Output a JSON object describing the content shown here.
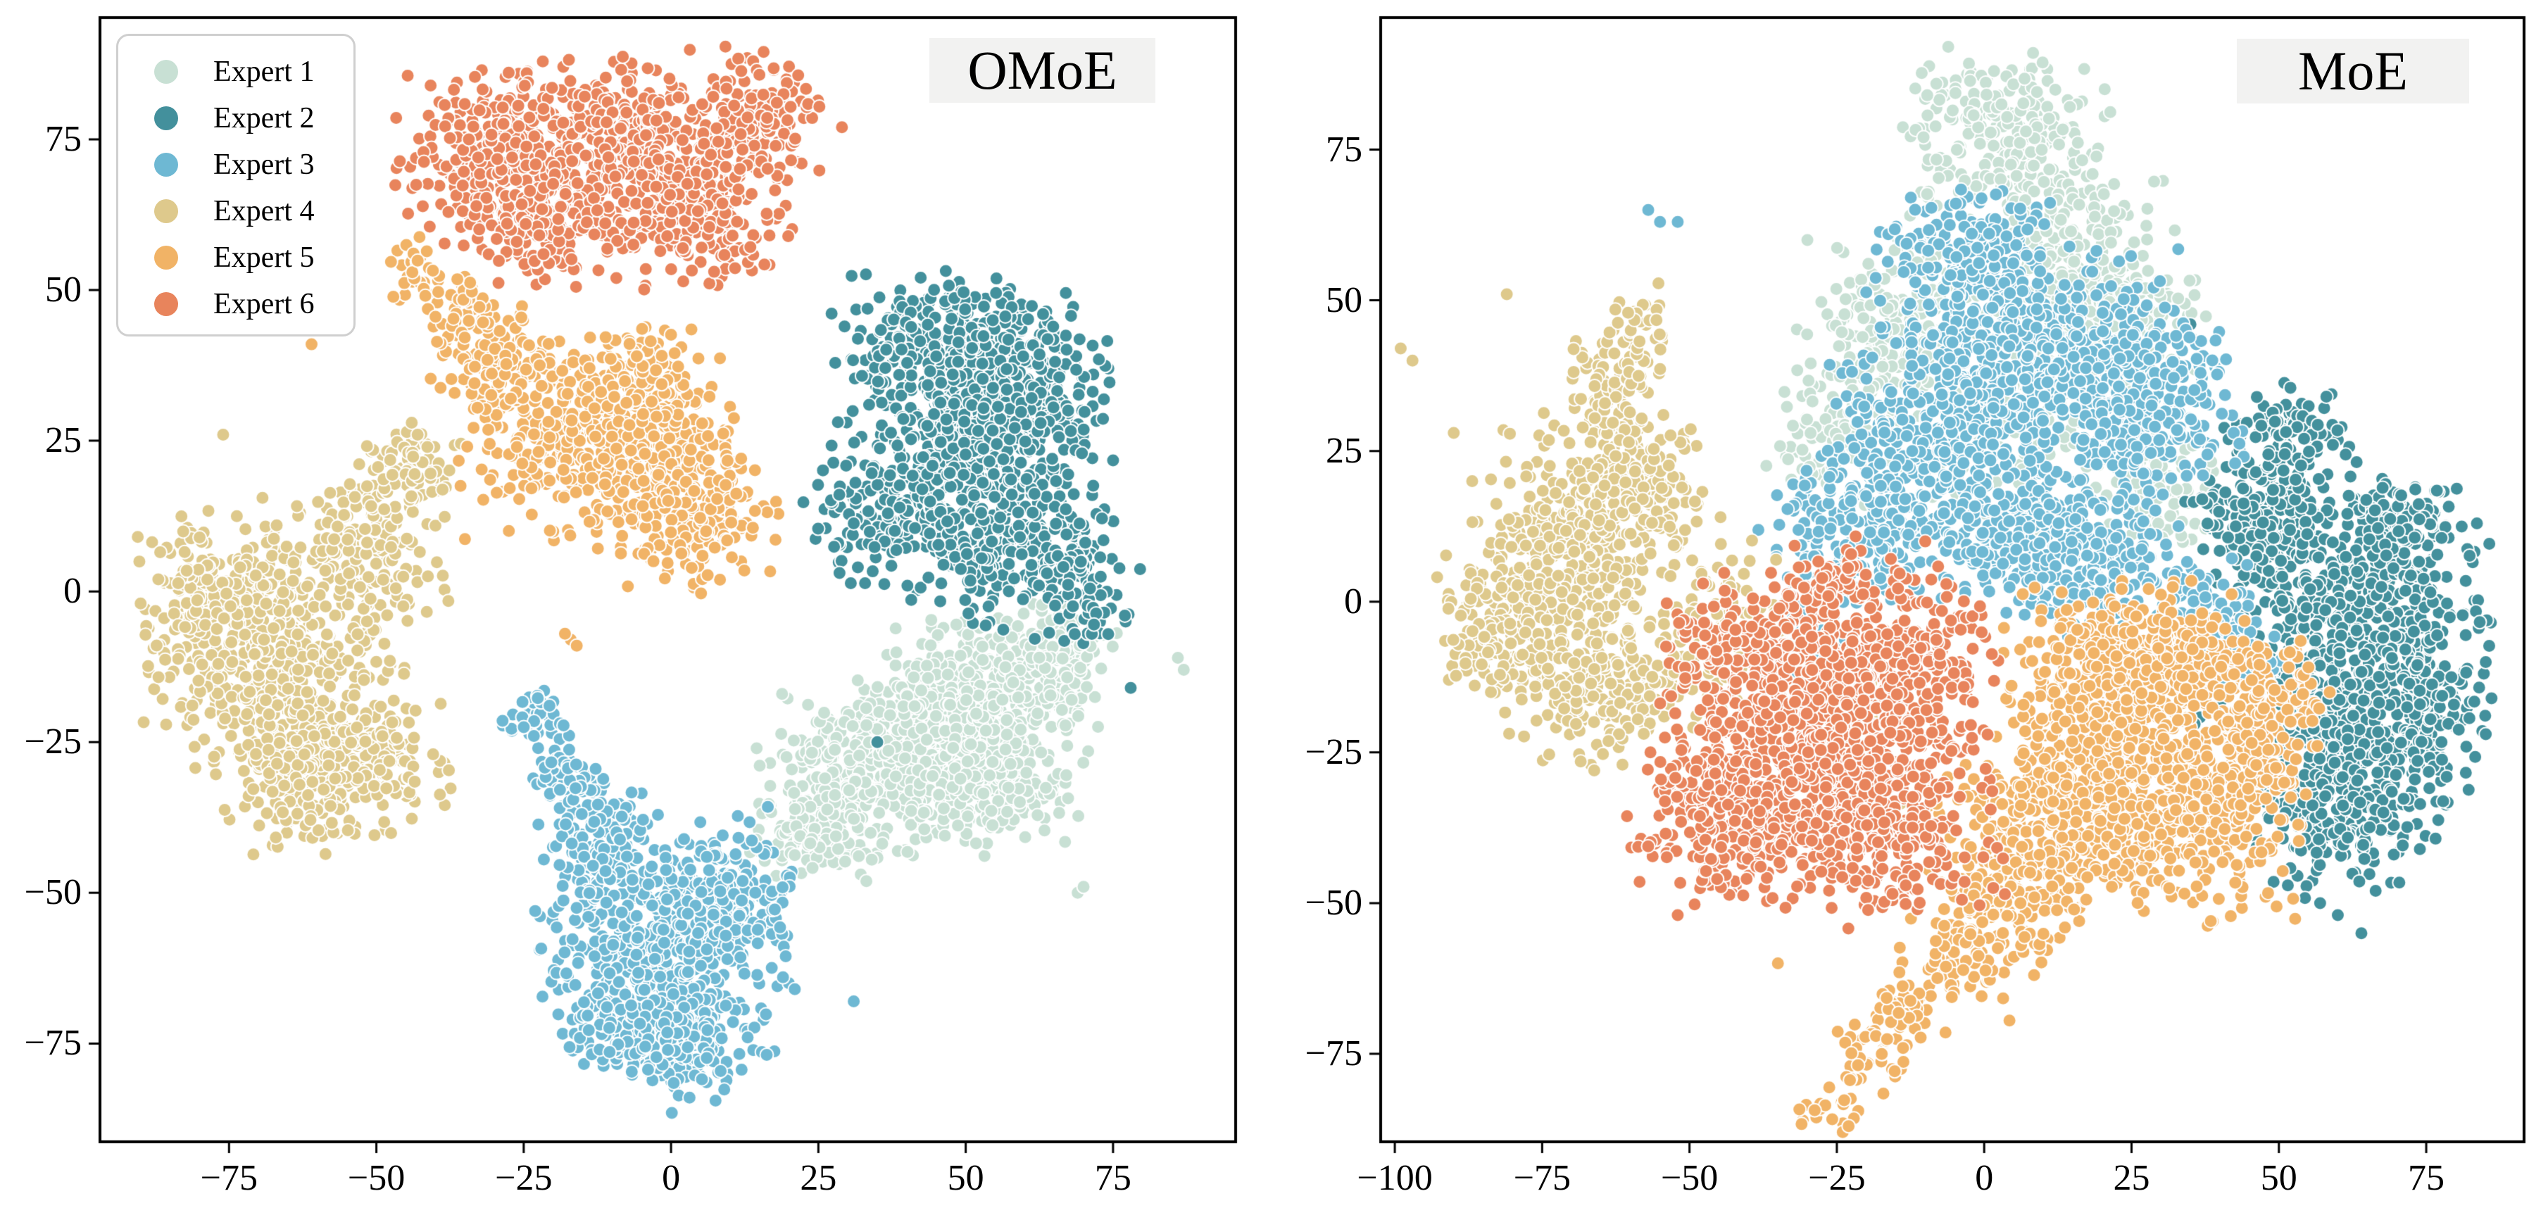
{
  "legend_note": "legend entries derive from chart_data.0.series names and colors",
  "chart_data": [
    {
      "type": "scatter",
      "title": "OMoE",
      "xlabel": "",
      "ylabel": "",
      "grid": false,
      "legend_position": "upper left",
      "x_ticks": [
        -75,
        -50,
        -25,
        0,
        25,
        50,
        75
      ],
      "y_ticks": [
        75,
        50,
        25,
        0,
        -25,
        -50,
        -75
      ],
      "x_range": [
        -96.9,
        95.8
      ],
      "y_range": [
        -91.3,
        95.2
      ],
      "series": [
        {
          "name": "Expert 1",
          "color": "#c8e0d4",
          "blobs": [
            [
              52,
              -18,
              9,
              6,
              380
            ],
            [
              35,
              -30,
              9,
              6,
              330
            ],
            [
              55,
              -32,
              6,
              5,
              200
            ],
            [
              25,
              -40,
              5,
              4,
              140
            ],
            [
              64,
              -11,
              5,
              4,
              150
            ],
            [
              44,
              -22,
              7,
              5,
              200
            ]
          ],
          "strays": [
            [
              86,
              -11
            ],
            [
              87,
              -13
            ],
            [
              69,
              -50
            ],
            [
              70,
              -49
            ]
          ]
        },
        {
          "name": "Expert 2",
          "color": "#43909c",
          "blobs": [
            [
              47,
              40,
              9,
              6,
              380
            ],
            [
              58,
              32,
              8,
              7,
              300
            ],
            [
              42,
              15,
              9,
              7,
              350
            ],
            [
              60,
              8,
              7,
              6,
              220
            ],
            [
              70,
              0,
              4,
              4,
              80
            ],
            [
              52,
              24,
              6,
              5,
              150
            ]
          ],
          "strays": [
            [
              77,
              -4
            ],
            [
              35,
              -25
            ],
            [
              78,
              -16
            ]
          ]
        },
        {
          "name": "Expert 3",
          "color": "#6eb8d3",
          "blobs": [
            [
              -3,
              -60,
              9,
              8,
              420
            ],
            [
              8,
              -50,
              6,
              6,
              220
            ],
            [
              -12,
              -42,
              5,
              5,
              160
            ],
            [
              -18,
              -30,
              3,
              3,
              60
            ],
            [
              -23,
              -21,
              2.5,
              2.5,
              40
            ],
            [
              2,
              -75,
              6,
              5,
              200
            ],
            [
              -8,
              -72,
              5,
              4,
              120
            ]
          ],
          "strays": [
            [
              20,
              -65
            ],
            [
              21,
              -66
            ],
            [
              19,
              -64
            ],
            [
              31,
              -68
            ],
            [
              13,
              -74
            ]
          ]
        },
        {
          "name": "Expert 4",
          "color": "#dec98c",
          "blobs": [
            [
              -67,
              -12,
              10,
              9,
              420
            ],
            [
              -55,
              -28,
              8,
              7,
              260
            ],
            [
              -75,
              0,
              7,
              7,
              220
            ],
            [
              -52,
              6,
              6,
              6,
              180
            ],
            [
              -45,
              19,
              4,
              4,
              90
            ],
            [
              -62,
              -32,
              6,
              5,
              140
            ]
          ],
          "strays": [
            [
              -76,
              26
            ],
            [
              -44,
              28
            ],
            [
              -43,
              26
            ],
            [
              -87,
              2
            ],
            [
              -90,
              -2
            ]
          ]
        },
        {
          "name": "Expert 5",
          "color": "#f1b366",
          "blobs": [
            [
              -13,
              25,
              10,
              7,
              450
            ],
            [
              2,
              14,
              7,
              6,
              250
            ],
            [
              -30,
              38,
              5,
              4,
              120
            ],
            [
              -36,
              47,
              3,
              3,
              50
            ],
            [
              -43,
              53,
              2.5,
              2.5,
              30
            ],
            [
              -5,
              33,
              6,
              5,
              160
            ]
          ],
          "strays": [
            [
              -61,
              41
            ],
            [
              -17,
              -8
            ],
            [
              -16,
              -9
            ],
            [
              -18,
              -7
            ]
          ]
        },
        {
          "name": "Expert 6",
          "color": "#e8845c",
          "blobs": [
            [
              -28,
              72,
              8,
              7,
              350
            ],
            [
              -8,
              75,
              8,
              7,
              350
            ],
            [
              5,
              62,
              7,
              5,
              200
            ],
            [
              14,
              77,
              5,
              6,
              180
            ],
            [
              -20,
              60,
              6,
              4,
              150
            ]
          ],
          "strays": [
            [
              29,
              77
            ]
          ]
        }
      ]
    },
    {
      "type": "scatter",
      "title": "MoE",
      "xlabel": "",
      "ylabel": "",
      "grid": false,
      "legend_position": "none",
      "x_ticks": [
        -100,
        -75,
        -50,
        -25,
        0,
        25,
        50,
        75
      ],
      "y_ticks": [
        75,
        50,
        25,
        0,
        -25,
        -50,
        -75
      ],
      "x_range": [
        -102.4,
        91.6
      ],
      "y_range": [
        -89.6,
        96.9
      ],
      "series": [
        {
          "name": "Expert 1",
          "color": "#c8e0d4",
          "blobs": [
            [
              3,
              76,
              8,
              7,
              280
            ],
            [
              16,
              55,
              7,
              7,
              250
            ],
            [
              24,
              44,
              6,
              6,
              180
            ],
            [
              -14,
              45,
              8,
              7,
              220
            ],
            [
              -25,
              28,
              5,
              5,
              100
            ],
            [
              5,
              30,
              12,
              8,
              150
            ],
            [
              30,
              20,
              6,
              5,
              90
            ]
          ],
          "strays": [
            [
              -30,
              60
            ],
            [
              9,
              12
            ]
          ]
        },
        {
          "name": "Expert 2",
          "color": "#43909c",
          "blobs": [
            [
              62,
              0,
              10,
              9,
              420
            ],
            [
              55,
              -20,
              9,
              8,
              320
            ],
            [
              72,
              -18,
              7,
              7,
              240
            ],
            [
              62,
              -35,
              7,
              6,
              200
            ],
            [
              48,
              14,
              6,
              5,
              160
            ],
            [
              70,
              13,
              5,
              4,
              120
            ],
            [
              52,
              28,
              5,
              4,
              100
            ]
          ],
          "strays": [
            [
              35,
              46
            ],
            [
              37,
              17
            ],
            [
              60,
              -52
            ],
            [
              64,
              -55
            ],
            [
              57,
              -50
            ]
          ]
        },
        {
          "name": "Expert 3",
          "color": "#6eb8d3",
          "blobs": [
            [
              8,
              42,
              12,
              8,
              500
            ],
            [
              25,
              32,
              8,
              7,
              300
            ],
            [
              -8,
              28,
              9,
              7,
              300
            ],
            [
              -22,
              12,
              7,
              6,
              200
            ],
            [
              2,
              12,
              9,
              7,
              280
            ],
            [
              20,
              8,
              7,
              6,
              200
            ],
            [
              38,
              -2,
              4,
              4,
              80
            ],
            [
              44,
              -8,
              3,
              3,
              40
            ],
            [
              -30,
              -5,
              4,
              4,
              70
            ],
            [
              -2,
              58,
              7,
              5,
              180
            ]
          ],
          "strays": [
            [
              -57,
              65
            ],
            [
              -55,
              63
            ],
            [
              -52,
              63
            ]
          ]
        },
        {
          "name": "Expert 4",
          "color": "#dec98c",
          "blobs": [
            [
              -70,
              8,
              8,
              10,
              350
            ],
            [
              -80,
              -5,
              6,
              7,
              200
            ],
            [
              -60,
              20,
              6,
              6,
              180
            ],
            [
              -65,
              -15,
              7,
              6,
              200
            ],
            [
              -63,
              35,
              4,
              5,
              80
            ],
            [
              -58,
              45,
              3,
              4,
              40
            ],
            [
              -45,
              -5,
              5,
              8,
              120
            ],
            [
              -25,
              -20,
              8,
              8,
              60
            ]
          ],
          "strays": [
            [
              -81,
              51
            ],
            [
              -99,
              42
            ],
            [
              -97,
              40
            ],
            [
              -90,
              28
            ]
          ]
        },
        {
          "name": "Expert 5",
          "color": "#f1b366",
          "blobs": [
            [
              25,
              -22,
              10,
              9,
              420
            ],
            [
              12,
              -35,
              9,
              8,
              320
            ],
            [
              35,
              -38,
              8,
              7,
              260
            ],
            [
              20,
              -10,
              7,
              6,
              220
            ],
            [
              35,
              -8,
              6,
              5,
              160
            ],
            [
              45,
              -25,
              5,
              6,
              140
            ],
            [
              5,
              -50,
              6,
              5,
              160
            ],
            [
              -5,
              -60,
              4,
              4,
              70
            ],
            [
              -13,
              -68,
              3,
              3,
              45
            ],
            [
              -20,
              -76,
              3,
              3,
              35
            ],
            [
              -27,
              -84,
              2.5,
              2,
              20
            ],
            [
              50,
              -15,
              4,
              4,
              80
            ]
          ],
          "strays": [
            [
              -24,
              -88
            ],
            [
              -23,
              -87
            ],
            [
              -35,
              -60
            ]
          ]
        },
        {
          "name": "Expert 6",
          "color": "#e8845c",
          "blobs": [
            [
              -30,
              -22,
              11,
              10,
              600
            ],
            [
              -15,
              -12,
              8,
              8,
              350
            ],
            [
              -42,
              -35,
              8,
              7,
              280
            ],
            [
              -18,
              -38,
              9,
              7,
              300
            ],
            [
              -38,
              -8,
              7,
              6,
              220
            ],
            [
              -25,
              4,
              4,
              3,
              60
            ]
          ],
          "strays": [
            [
              -10,
              10
            ],
            [
              -52,
              -52
            ]
          ]
        }
      ]
    }
  ],
  "style": {
    "frame_color": "#000000",
    "badge_background": "#f2f2f1",
    "dot_edge_color": "#ffffff"
  }
}
